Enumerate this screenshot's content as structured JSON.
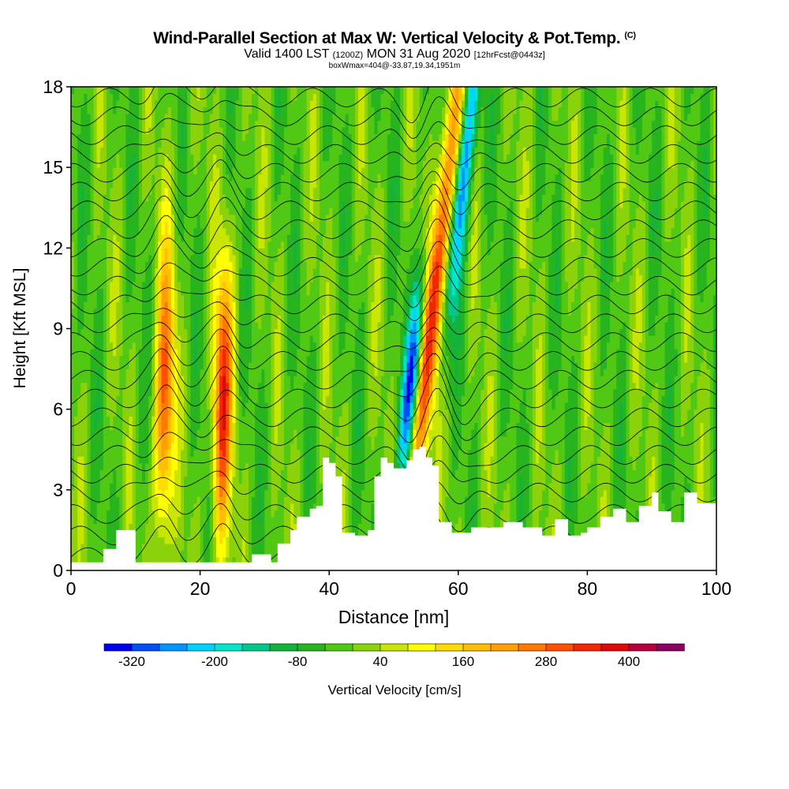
{
  "title": {
    "main": "Wind-Parallel Section at Max W: Vertical Velocity & Pot.Temp.",
    "copyright": "(C)",
    "valid_prefix": "Valid 1400 LST",
    "valid_utc": "(1200Z)",
    "valid_date": "MON 31 Aug 2020",
    "forecast": "[12hrFcst@0443z]",
    "box_info": "boxWmax=404@-33.87,19.34,1951m"
  },
  "colorbar": {
    "label": "Vertical Velocity [cm/s]",
    "tick_labels": [
      "-320",
      "-200",
      "-80",
      "40",
      "160",
      "280",
      "400"
    ],
    "tick_values": [
      -320,
      -200,
      -80,
      40,
      160,
      280,
      400
    ],
    "levels": [
      -360,
      -320,
      -280,
      -240,
      -200,
      -160,
      -120,
      -80,
      -40,
      0,
      40,
      80,
      120,
      160,
      200,
      240,
      280,
      320,
      360,
      400,
      440,
      480
    ],
    "colors": [
      "#0000ee",
      "#0050f5",
      "#0096ff",
      "#00d2ff",
      "#00e6c8",
      "#00c88c",
      "#14b43c",
      "#28b41e",
      "#50c814",
      "#8cd20a",
      "#c8e600",
      "#ffff00",
      "#ffdc00",
      "#ffbe00",
      "#ffa000",
      "#ff7800",
      "#ff5000",
      "#f02800",
      "#dc0a0a",
      "#b4003c",
      "#8c0064"
    ]
  },
  "chart_data": {
    "type": "heatmap",
    "xlabel": "Distance [nm]",
    "ylabel": "Height [Kft MSL]",
    "xlim": [
      0,
      100
    ],
    "ylim": [
      0,
      18
    ],
    "x_ticks": [
      0,
      20,
      40,
      60,
      80,
      100
    ],
    "y_ticks": [
      0,
      3,
      6,
      9,
      12,
      15,
      18
    ],
    "max_vertical_velocity_cm_s": 404,
    "updraft_cores": [
      {
        "x": 14.5,
        "y_range": [
          3,
          10
        ],
        "peak_w": 300
      },
      {
        "x": 23.5,
        "y_range": [
          3,
          9.5
        ],
        "peak_w": 350
      },
      {
        "x": 56.5,
        "y_range": [
          5,
          16
        ],
        "peak_w": 404
      }
    ],
    "downdraft_cores": [
      {
        "x": 53,
        "y_range": [
          5,
          10
        ],
        "peak_w": -320
      },
      {
        "x": 60.5,
        "y_range": [
          11,
          18
        ],
        "peak_w": -300
      }
    ],
    "terrain_height_kft": [
      [
        0,
        0.3
      ],
      [
        3,
        0.3
      ],
      [
        5,
        0.8
      ],
      [
        7,
        1.5
      ],
      [
        9,
        1.5
      ],
      [
        10,
        0.3
      ],
      [
        27,
        0.3
      ],
      [
        28,
        0.6
      ],
      [
        30,
        0.6
      ],
      [
        31,
        0.3
      ],
      [
        32,
        1
      ],
      [
        34,
        1.5
      ],
      [
        35,
        2
      ],
      [
        37,
        2.3
      ],
      [
        38,
        2.4
      ],
      [
        39,
        4.2
      ],
      [
        40,
        4
      ],
      [
        41,
        3.5
      ],
      [
        42,
        1.4
      ],
      [
        44,
        1.3
      ],
      [
        46,
        1.5
      ],
      [
        47,
        3.5
      ],
      [
        48,
        4.2
      ],
      [
        49,
        4
      ],
      [
        50,
        3.8
      ],
      [
        52,
        4.1
      ],
      [
        53,
        4.5
      ],
      [
        54,
        4.6
      ],
      [
        55,
        4.2
      ],
      [
        56,
        3.9
      ],
      [
        57,
        1.8
      ],
      [
        59,
        1.4
      ],
      [
        62,
        1.6
      ],
      [
        65,
        1.6
      ],
      [
        67,
        1.8
      ],
      [
        70,
        1.6
      ],
      [
        73,
        1.3
      ],
      [
        75,
        1.9
      ],
      [
        77,
        1.3
      ],
      [
        79,
        1.4
      ],
      [
        80,
        1.6
      ],
      [
        82,
        2
      ],
      [
        84,
        2.3
      ],
      [
        86,
        1.8
      ],
      [
        88,
        2.4
      ],
      [
        90,
        2.9
      ],
      [
        91,
        2.2
      ],
      [
        93,
        1.8
      ],
      [
        95,
        2.9
      ],
      [
        97,
        2.5
      ],
      [
        100,
        3.3
      ]
    ],
    "isentrope_heights_kft": [
      0.5,
      1.3,
      2.1,
      2.9,
      3.6,
      4.3,
      5.0,
      5.7,
      6.4,
      7.1,
      7.8,
      8.5,
      9.2,
      9.9,
      10.6,
      11.3,
      12.0,
      12.7,
      13.4,
      14.1,
      14.8,
      15.5,
      16.2,
      16.9,
      17.6
    ]
  }
}
